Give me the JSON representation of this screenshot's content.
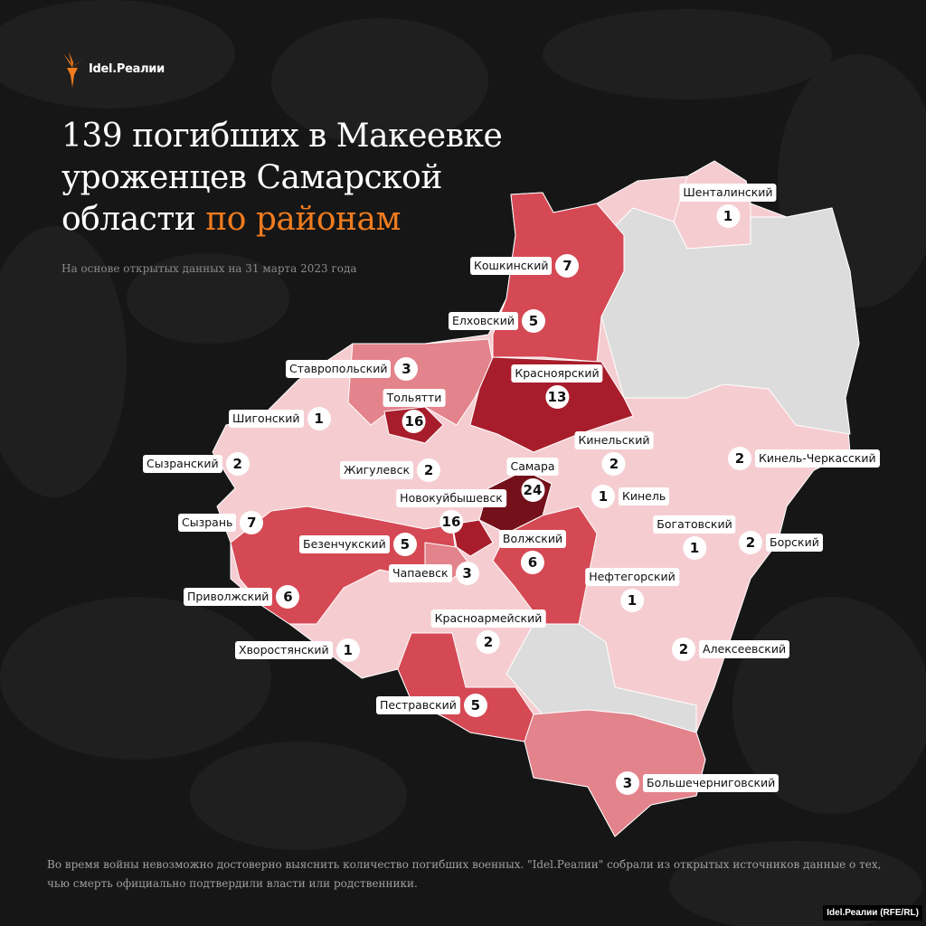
{
  "brand": {
    "name": "Idel.Реалии",
    "accent": "#f07c1f"
  },
  "header": {
    "title_line1": "139 погибших в Макеевке",
    "title_line2": "уроженцев Самарской",
    "title_line3_plain": "области",
    "title_line3_accent": "по районам",
    "subtitle": "На основе открытых данных на 31 марта 2023 года"
  },
  "color_scale": {
    "none": "#dcdcdc",
    "low": "#f5cdd1",
    "mid": "#e3838b",
    "high": "#d54954",
    "very_high": "#a81d2b",
    "max": "#74101a"
  },
  "districts": [
    {
      "name": "Шенталинский",
      "count": "1"
    },
    {
      "name": "Кошкинский",
      "count": "7"
    },
    {
      "name": "Елховский",
      "count": "5"
    },
    {
      "name": "Ставропольский",
      "count": "3"
    },
    {
      "name": "Красноярский",
      "count": "13"
    },
    {
      "name": "Тольятти",
      "count": "16"
    },
    {
      "name": "Шигонский",
      "count": "1"
    },
    {
      "name": "Кинельский",
      "count": "2"
    },
    {
      "name": "Кинель-Черкасский",
      "count": "2"
    },
    {
      "name": "Сызранский",
      "count": "2"
    },
    {
      "name": "Жигулевск",
      "count": "2"
    },
    {
      "name": "Самара",
      "count": "24"
    },
    {
      "name": "Кинель",
      "count": "1"
    },
    {
      "name": "Новокуйбышевск",
      "count": "16"
    },
    {
      "name": "Сызрань",
      "count": "7"
    },
    {
      "name": "Богатовский",
      "count": "1"
    },
    {
      "name": "Борский",
      "count": "2"
    },
    {
      "name": "Безенчукский",
      "count": "5"
    },
    {
      "name": "Волжский",
      "count": "6"
    },
    {
      "name": "Чапаевск",
      "count": "3"
    },
    {
      "name": "Нефтегорский",
      "count": "1"
    },
    {
      "name": "Приволжский",
      "count": "6"
    },
    {
      "name": "Красноармейский",
      "count": "2"
    },
    {
      "name": "Хворостянский",
      "count": "1"
    },
    {
      "name": "Алексеевский",
      "count": "2"
    },
    {
      "name": "Пестравский",
      "count": "5"
    },
    {
      "name": "Большечерниговский",
      "count": "3"
    }
  ],
  "footnote": "Во время войны невозможно достоверно выяснить количество погибших военных. \"Idel.Реалии\" собрали из открытых источников данные о тех, чью смерть официально подтвердили власти или родственники.",
  "credit": "Idel.Реалии (RFE/RL)"
}
